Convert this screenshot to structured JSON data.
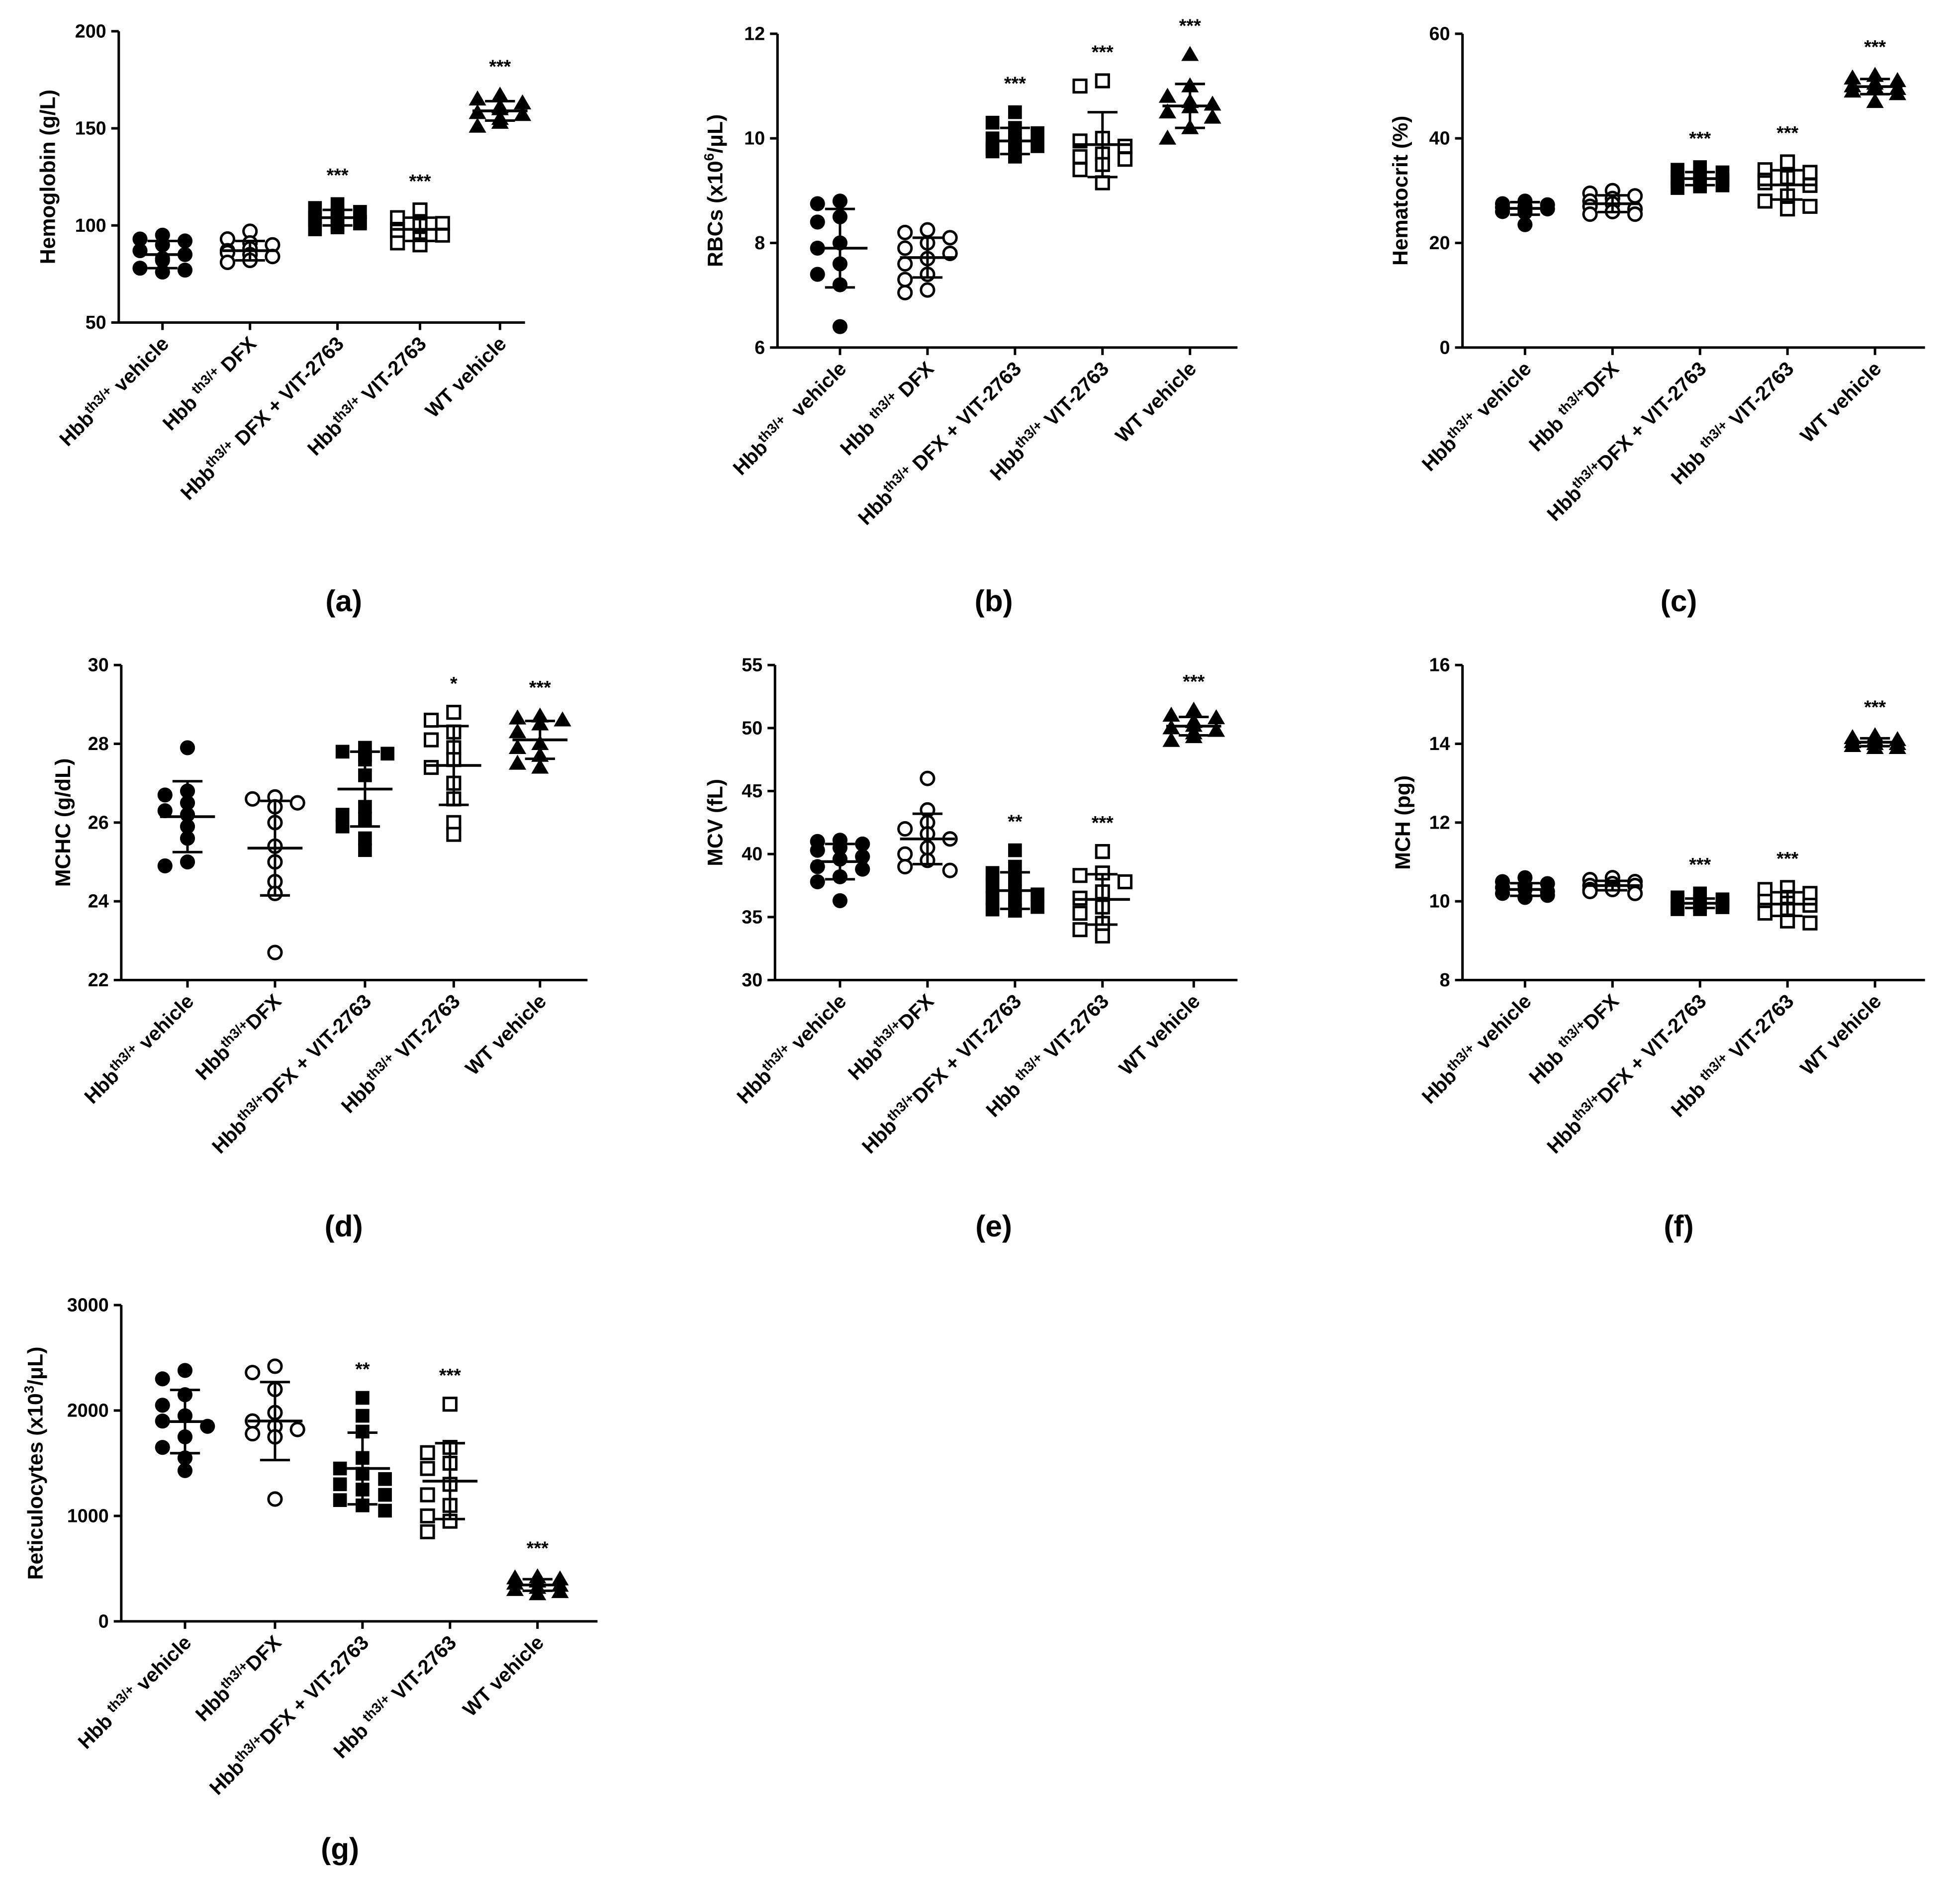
{
  "colors": {
    "ink": "#000000",
    "paper": "#ffffff"
  },
  "chart_data": [
    {
      "panel": "(a)",
      "type": "scatter",
      "ylabel": [
        "Hemoglobin (g/L)"
      ],
      "ylim": [
        50,
        200
      ],
      "yticks": [
        50,
        100,
        150,
        200
      ],
      "categories": [
        [
          "Hbb",
          "th3/+",
          " vehicle"
        ],
        [
          "Hbb ",
          "th3/+",
          " DFX"
        ],
        [
          "Hbb",
          "th3/+",
          " DFX + VIT-2763"
        ],
        [
          "Hbb",
          "th3/+",
          " VIT-2763"
        ],
        [
          "WT vehicle"
        ]
      ],
      "groups": [
        {
          "marker": "filled-circle",
          "mean": 85,
          "sd": 7,
          "points": [
            95,
            93,
            92,
            90,
            87,
            85,
            83,
            82,
            78,
            77,
            76
          ]
        },
        {
          "marker": "open-circle",
          "mean": 87,
          "sd": 5,
          "points": [
            97,
            93,
            91,
            90,
            88,
            87,
            86,
            85,
            84,
            82,
            81
          ]
        },
        {
          "marker": "filled-square",
          "mean": 104,
          "sd": 4,
          "points": [
            111,
            109,
            107,
            106,
            105,
            104,
            103,
            102,
            101,
            100,
            99,
            98
          ],
          "sig": "***"
        },
        {
          "marker": "open-square",
          "mean": 98,
          "sd": 6,
          "points": [
            108,
            104,
            102,
            101,
            100,
            98,
            97,
            95,
            93,
            91,
            90
          ],
          "sig": "***"
        },
        {
          "marker": "filled-triangle",
          "mean": 159,
          "sd": 5,
          "points": [
            167,
            165,
            163,
            161,
            160,
            158,
            157,
            155,
            153,
            151
          ],
          "sig": "***"
        }
      ]
    },
    {
      "panel": "(b)",
      "type": "scatter",
      "ylabel": [
        "RBCs (x10",
        "6",
        "/μL)"
      ],
      "ylim": [
        6,
        12
      ],
      "yticks": [
        6,
        8,
        10,
        12
      ],
      "categories": [
        [
          "Hbb",
          "th3/+",
          "  vehicle"
        ],
        [
          "Hbb ",
          "th3/+",
          " DFX"
        ],
        [
          "Hbb",
          "th3/+",
          " DFX + VIT-2763"
        ],
        [
          "Hbb",
          "th3/+",
          " VIT-2763"
        ],
        [
          "WT vehicle"
        ]
      ],
      "groups": [
        {
          "marker": "filled-circle",
          "mean": 7.9,
          "sd": 0.75,
          "points": [
            8.8,
            8.75,
            8.5,
            8.4,
            8.0,
            7.9,
            7.6,
            7.4,
            7.2,
            6.4
          ]
        },
        {
          "marker": "open-circle",
          "mean": 7.72,
          "sd": 0.38,
          "points": [
            8.25,
            8.2,
            8.1,
            8.0,
            7.9,
            7.8,
            7.7,
            7.6,
            7.4,
            7.3,
            7.1,
            7.05
          ]
        },
        {
          "marker": "filled-square",
          "mean": 9.95,
          "sd": 0.25,
          "points": [
            10.5,
            10.3,
            10.2,
            10.1,
            10.0,
            9.95,
            9.9,
            9.85,
            9.8,
            9.75,
            9.7,
            9.65
          ],
          "sig": "***"
        },
        {
          "marker": "open-square",
          "mean": 9.88,
          "sd": 0.62,
          "points": [
            11.1,
            11.0,
            10.0,
            9.95,
            9.85,
            9.7,
            9.65,
            9.6,
            9.5,
            9.4,
            9.15
          ],
          "sig": "***"
        },
        {
          "marker": "filled-triangle",
          "mean": 10.62,
          "sd": 0.42,
          "points": [
            11.6,
            11.0,
            10.8,
            10.7,
            10.65,
            10.6,
            10.5,
            10.4,
            10.2,
            10.0
          ],
          "sig": "***"
        }
      ]
    },
    {
      "panel": "(c)",
      "type": "scatter",
      "ylabel": [
        "Hematocrit (%)"
      ],
      "ylim": [
        0,
        60
      ],
      "yticks": [
        0,
        20,
        40,
        60
      ],
      "categories": [
        [
          "Hbb",
          "th3/+",
          " vehicle"
        ],
        [
          "Hbb ",
          "th3/+",
          "DFX"
        ],
        [
          "Hbb",
          "th3/+",
          "DFX + VIT-2763"
        ],
        [
          "Hbb ",
          "th3/+",
          " VIT-2763"
        ],
        [
          "WT vehicle"
        ]
      ],
      "groups": [
        {
          "marker": "filled-circle",
          "mean": 26.6,
          "sd": 1.2,
          "points": [
            28,
            27.5,
            27.3,
            27,
            26.8,
            26.5,
            26.3,
            26,
            25.8,
            23.5
          ]
        },
        {
          "marker": "open-circle",
          "mean": 27.5,
          "sd": 1.6,
          "points": [
            30,
            29.5,
            29,
            28.5,
            28,
            27.5,
            27,
            26.5,
            26,
            25.5,
            25.5
          ]
        },
        {
          "marker": "filled-square",
          "mean": 32.3,
          "sd": 1.25,
          "points": [
            34.5,
            34,
            33.5,
            33,
            32.5,
            32.2,
            32,
            31.8,
            31.5,
            31,
            30.8,
            30.5
          ],
          "sig": "***"
        },
        {
          "marker": "open-square",
          "mean": 31.1,
          "sd": 2.8,
          "points": [
            35.5,
            34,
            33.5,
            33,
            32.5,
            32,
            31.5,
            31,
            29,
            28,
            27,
            26.5
          ],
          "sig": "***"
        },
        {
          "marker": "filled-triangle",
          "mean": 49.9,
          "sd": 1.45,
          "points": [
            52,
            51.5,
            51,
            50.5,
            50,
            49.8,
            49.5,
            49,
            48.5,
            47
          ],
          "sig": "***"
        }
      ]
    },
    {
      "panel": "(d)",
      "type": "scatter",
      "ylabel": [
        "MCHC (g/dL)"
      ],
      "ylim": [
        22,
        30
      ],
      "yticks": [
        22,
        24,
        26,
        28,
        30
      ],
      "categories": [
        [
          "Hbb",
          "th3/+",
          " vehicle"
        ],
        [
          "Hbb",
          "th3/+",
          "DFX"
        ],
        [
          "Hbb",
          "th3/+",
          "DFX + VIT-2763"
        ],
        [
          "Hbb",
          "th3/+",
          " VIT-2763"
        ],
        [
          "WT vehicle"
        ]
      ],
      "groups": [
        {
          "marker": "filled-circle",
          "mean": 26.15,
          "sd": 0.9,
          "points": [
            27.9,
            26.8,
            26.7,
            26.5,
            26.3,
            26.2,
            25.9,
            25.6,
            25.0,
            24.9
          ]
        },
        {
          "marker": "open-circle",
          "mean": 25.35,
          "sd": 1.2,
          "points": [
            26.65,
            26.6,
            26.5,
            26.4,
            26.0,
            25.4,
            25.0,
            24.5,
            24.2,
            22.7
          ]
        },
        {
          "marker": "filled-square",
          "mean": 26.85,
          "sd": 0.95,
          "points": [
            27.9,
            27.8,
            27.75,
            27.7,
            27.6,
            27.2,
            26.4,
            26.2,
            26.1,
            25.9,
            25.6,
            25.3
          ]
        },
        {
          "marker": "open-square",
          "mean": 27.45,
          "sd": 1.0,
          "points": [
            28.8,
            28.6,
            28.3,
            28.1,
            27.9,
            27.6,
            27.4,
            27.0,
            26.6,
            26.0,
            25.7
          ],
          "sig": "*"
        },
        {
          "marker": "filled-triangle",
          "mean": 28.1,
          "sd": 0.48,
          "points": [
            28.7,
            28.65,
            28.6,
            28.5,
            28.3,
            28.0,
            27.9,
            27.7,
            27.5,
            27.4
          ],
          "sig": "***"
        }
      ]
    },
    {
      "panel": "(e)",
      "type": "scatter",
      "ylabel": [
        "MCV (fL)"
      ],
      "ylim": [
        30,
        55
      ],
      "yticks": [
        30,
        35,
        40,
        45,
        50,
        55
      ],
      "categories": [
        [
          "Hbb",
          "th3/+",
          " vehicle"
        ],
        [
          "Hbb",
          "th3/+",
          "DFX"
        ],
        [
          "Hbb",
          "th3/+",
          "DFX + VIT-2763"
        ],
        [
          "Hbb ",
          "th3/+",
          " VIT-2763"
        ],
        [
          "WT vehicle"
        ]
      ],
      "groups": [
        {
          "marker": "filled-circle",
          "mean": 39.4,
          "sd": 1.4,
          "points": [
            41.1,
            41.0,
            40.8,
            40.5,
            40.3,
            39.8,
            39.6,
            39.0,
            38.8,
            38.2,
            37.8,
            36.3
          ]
        },
        {
          "marker": "open-circle",
          "mean": 41.2,
          "sd": 2.0,
          "points": [
            46.0,
            43.5,
            42.5,
            42.0,
            41.6,
            41.2,
            40.5,
            40.0,
            39.5,
            39.0,
            38.7
          ]
        },
        {
          "marker": "filled-square",
          "mean": 37.1,
          "sd": 1.45,
          "points": [
            40.3,
            39.0,
            38.5,
            38.0,
            37.5,
            37.0,
            36.8,
            36.5,
            36.0,
            35.8,
            35.6,
            35.5
          ],
          "sig": "**"
        },
        {
          "marker": "open-square",
          "mean": 36.4,
          "sd": 2.0,
          "points": [
            40.2,
            38.5,
            38.3,
            37.8,
            37.0,
            36.5,
            35.8,
            35.3,
            34.5,
            34.0,
            33.5
          ],
          "sig": "***"
        },
        {
          "marker": "filled-triangle",
          "mean": 50.15,
          "sd": 0.73,
          "points": [
            51.4,
            51.0,
            50.8,
            50.5,
            50.2,
            50.0,
            49.8,
            49.6,
            49.3,
            49.0
          ],
          "sig": "***"
        }
      ]
    },
    {
      "panel": "(f)",
      "type": "scatter",
      "ylabel": [
        "MCH (pg)"
      ],
      "ylim": [
        8,
        16
      ],
      "yticks": [
        8,
        10,
        12,
        14,
        16
      ],
      "categories": [
        [
          "Hbb",
          "th3/+",
          " vehicle"
        ],
        [
          "Hbb ",
          "th3/+",
          "DFX"
        ],
        [
          "Hbb",
          "th3/+",
          "DFX + VIT-2763"
        ],
        [
          "Hbb ",
          "th3/+",
          " VIT-2763"
        ],
        [
          "WT vehicle"
        ]
      ],
      "groups": [
        {
          "marker": "filled-circle",
          "mean": 10.3,
          "sd": 0.16,
          "points": [
            10.6,
            10.5,
            10.45,
            10.4,
            10.35,
            10.3,
            10.25,
            10.2,
            10.15,
            10.1,
            10.1
          ]
        },
        {
          "marker": "open-circle",
          "mean": 10.4,
          "sd": 0.12,
          "points": [
            10.6,
            10.55,
            10.5,
            10.45,
            10.4,
            10.4,
            10.35,
            10.3,
            10.3,
            10.25,
            10.2
          ]
        },
        {
          "marker": "filled-square",
          "mean": 9.95,
          "sd": 0.12,
          "points": [
            10.2,
            10.1,
            10.05,
            10.0,
            10.0,
            9.95,
            9.9,
            9.9,
            9.85,
            9.85,
            9.8,
            9.8
          ],
          "sig": "***"
        },
        {
          "marker": "open-square",
          "mean": 9.93,
          "sd": 0.3,
          "points": [
            10.35,
            10.3,
            10.2,
            10.1,
            10.0,
            9.95,
            9.9,
            9.8,
            9.7,
            9.5,
            9.45
          ],
          "sig": "***"
        },
        {
          "marker": "filled-triangle",
          "mean": 14.04,
          "sd": 0.1,
          "points": [
            14.2,
            14.15,
            14.1,
            14.1,
            14.05,
            14.0,
            14.0,
            13.95,
            13.9,
            13.9
          ],
          "sig": "***"
        }
      ]
    },
    {
      "panel": "(g)",
      "type": "scatter",
      "ylabel": [
        "Reticulocytes (x10",
        "3",
        "/μL)"
      ],
      "ylim": [
        0,
        3000
      ],
      "yticks": [
        0,
        1000,
        2000,
        3000
      ],
      "categories": [
        [
          "Hbb ",
          "th3/+",
          " vehicle"
        ],
        [
          "Hbb",
          "th3/+",
          "DFX"
        ],
        [
          "Hbb",
          "th3/+",
          "DFX + VIT-2763"
        ],
        [
          "Hbb ",
          "th3/+",
          " VIT-2763"
        ],
        [
          "WT vehicle"
        ]
      ],
      "groups": [
        {
          "marker": "filled-circle",
          "mean": 1895,
          "sd": 300,
          "points": [
            2380,
            2300,
            2150,
            2050,
            1950,
            1900,
            1850,
            1750,
            1650,
            1550,
            1430
          ]
        },
        {
          "marker": "open-circle",
          "mean": 1900,
          "sd": 370,
          "points": [
            2420,
            2360,
            2200,
            1980,
            1900,
            1850,
            1820,
            1780,
            1750,
            1160
          ]
        },
        {
          "marker": "filled-square",
          "mean": 1450,
          "sd": 340,
          "points": [
            2120,
            1950,
            1800,
            1550,
            1450,
            1400,
            1350,
            1300,
            1250,
            1200,
            1150,
            1100,
            1050
          ],
          "sig": "**"
        },
        {
          "marker": "open-square",
          "mean": 1330,
          "sd": 360,
          "points": [
            2060,
            1650,
            1600,
            1500,
            1450,
            1300,
            1200,
            1100,
            1000,
            950,
            850
          ],
          "sig": "***"
        },
        {
          "marker": "filled-triangle",
          "mean": 345,
          "sd": 55,
          "points": [
            420,
            410,
            400,
            380,
            360,
            340,
            320,
            300,
            280,
            260
          ],
          "sig": "***"
        }
      ]
    }
  ]
}
